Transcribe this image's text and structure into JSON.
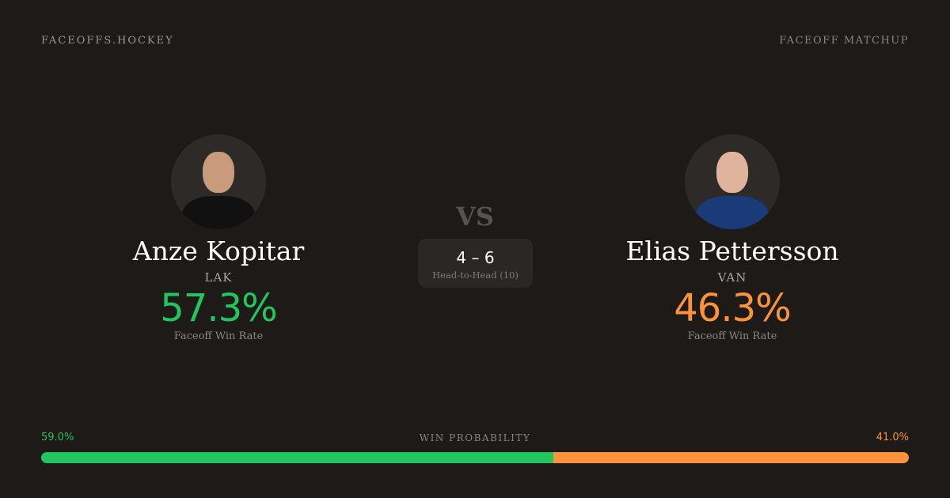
{
  "header": {
    "brand": "FACEOFFS.HOCKEY",
    "page_type": "FACEOFF MATCHUP"
  },
  "colors": {
    "left": "#22c55e",
    "right": "#fb923c",
    "background": "#1d1a18"
  },
  "players": [
    {
      "name": "Anze Kopitar",
      "team": "LAK",
      "win_rate": "57.3%",
      "win_rate_label": "Faceoff Win Rate",
      "jersey_color": "#111111"
    },
    {
      "name": "Elias Pettersson",
      "team": "VAN",
      "win_rate": "46.3%",
      "win_rate_label": "Faceoff Win Rate",
      "jersey_color": "#1b3a7a"
    }
  ],
  "vs": "VS",
  "head_to_head": {
    "score": "4 – 6",
    "label": "Head-to-Head (10)"
  },
  "win_probability": {
    "label": "WIN PROBABILITY",
    "left": "59.0%",
    "right": "41.0%",
    "left_fraction": 0.59
  }
}
